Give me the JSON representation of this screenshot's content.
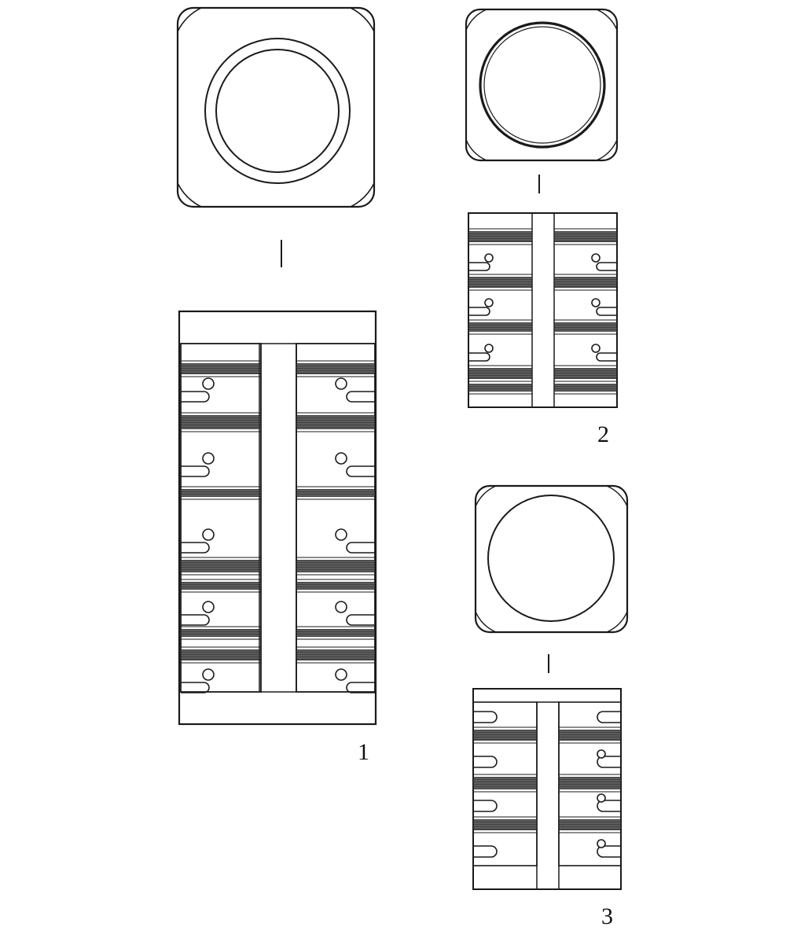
{
  "figure": {
    "artifacts": [
      {
        "label": "1"
      },
      {
        "label": "2"
      },
      {
        "label": "3"
      }
    ]
  },
  "colors": {
    "ink": "#1a1a1a",
    "paper": "#ffffff"
  }
}
